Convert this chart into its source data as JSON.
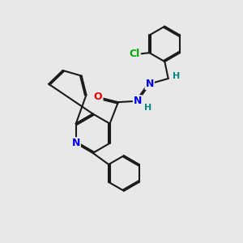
{
  "bg_color": "#e8e8e8",
  "bond_color": "#1a1a1a",
  "N_color": "#0000ee",
  "O_color": "#ee0000",
  "Cl_color": "#00aa00",
  "H_color": "#008888",
  "bond_width": 1.5,
  "dbo": 0.055,
  "figsize": [
    3.0,
    3.0
  ],
  "dpi": 100,
  "xlim": [
    0,
    10
  ],
  "ylim": [
    0,
    10
  ]
}
